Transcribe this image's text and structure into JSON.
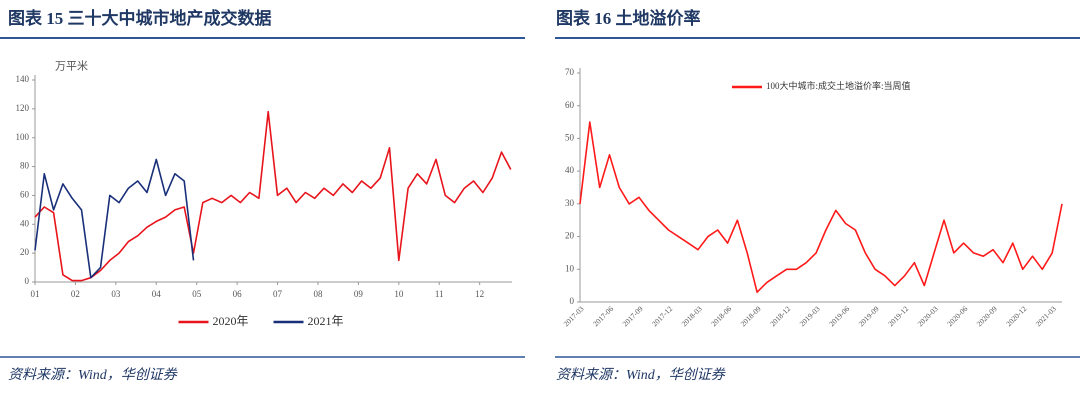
{
  "chart_data": [
    {
      "type": "line",
      "title": "图表 15   三十大中城市地产成交数据",
      "source": "资料来源：Wind，华创证券",
      "y_label": "万平米",
      "x": [
        1.0,
        1.23,
        1.46,
        1.69,
        1.92,
        2.15,
        2.38,
        2.62,
        2.85,
        3.08,
        3.31,
        3.54,
        3.77,
        4.0,
        4.23,
        4.46,
        4.69,
        4.92,
        5.15,
        5.38,
        5.62,
        5.85,
        6.08,
        6.31,
        6.54,
        6.77,
        7.0,
        7.23,
        7.46,
        7.69,
        7.92,
        8.15,
        8.38,
        8.62,
        8.85,
        9.08,
        9.31,
        9.54,
        9.77,
        10.0,
        10.23,
        10.46,
        10.69,
        10.92,
        11.15,
        11.38,
        11.62,
        11.85,
        12.08,
        12.31,
        12.54,
        12.77
      ],
      "xlim": [
        1,
        12.8
      ],
      "xticks": [
        {
          "value": 1,
          "label": "01"
        },
        {
          "value": 2,
          "label": "02"
        },
        {
          "value": 3,
          "label": "03"
        },
        {
          "value": 4,
          "label": "04"
        },
        {
          "value": 5,
          "label": "05"
        },
        {
          "value": 6,
          "label": "06"
        },
        {
          "value": 7,
          "label": "07"
        },
        {
          "value": 8,
          "label": "08"
        },
        {
          "value": 9,
          "label": "09"
        },
        {
          "value": 10,
          "label": "10"
        },
        {
          "value": 11,
          "label": "11"
        },
        {
          "value": 12,
          "label": "12"
        }
      ],
      "ylim": [
        0,
        140
      ],
      "yticks": [
        0,
        20,
        40,
        60,
        80,
        100,
        120,
        140
      ],
      "legend": "bottom",
      "series": [
        {
          "name": "2020年",
          "color": "#e8141b",
          "values": [
            45,
            52,
            48,
            5,
            1,
            1,
            3,
            8,
            15,
            20,
            28,
            32,
            38,
            42,
            45,
            50,
            52,
            20,
            55,
            58,
            55,
            60,
            55,
            62,
            58,
            118,
            60,
            65,
            55,
            62,
            58,
            65,
            60,
            68,
            62,
            70,
            65,
            72,
            93,
            15,
            65,
            75,
            68,
            85,
            60,
            55,
            65,
            70,
            62,
            72,
            90,
            78
          ]
        },
        {
          "name": "2021年",
          "color": "#1a2f7a",
          "values": [
            22,
            75,
            50,
            68,
            58,
            50,
            3,
            10,
            60,
            55,
            65,
            70,
            62,
            85,
            60,
            75,
            70,
            15,
            null,
            null,
            null,
            null,
            null,
            null,
            null,
            null,
            null,
            null,
            null,
            null,
            null,
            null,
            null,
            null,
            null,
            null,
            null,
            null,
            null,
            null,
            null,
            null,
            null,
            null,
            null,
            null,
            null,
            null,
            null,
            null,
            null,
            null
          ]
        }
      ]
    },
    {
      "type": "line",
      "title": "图表 16   土地溢价率",
      "source": "资料来源：Wind，华创证券",
      "categories": [
        "2017-03",
        null,
        null,
        "2017-06",
        null,
        null,
        "2017-09",
        null,
        null,
        "2017-12",
        null,
        null,
        "2018-03",
        null,
        null,
        "2018-06",
        null,
        null,
        "2018-09",
        null,
        null,
        "2018-12",
        null,
        null,
        "2019-03",
        null,
        null,
        "2019-06",
        null,
        null,
        "2019-09",
        null,
        null,
        "2019-12",
        null,
        null,
        "2020-03",
        null,
        null,
        "2020-06",
        null,
        null,
        "2020-09",
        null,
        null,
        "2020-12",
        null,
        null,
        "2021-03",
        null
      ],
      "ylim": [
        0,
        70
      ],
      "yticks": [
        0,
        10,
        20,
        30,
        40,
        50,
        60,
        70
      ],
      "legend": "top",
      "series": [
        {
          "name": "100大中城市:成交土地溢价率:当周值",
          "color": "#ff1a1a",
          "values": [
            30,
            55,
            35,
            45,
            35,
            30,
            32,
            28,
            25,
            22,
            20,
            18,
            16,
            20,
            22,
            18,
            25,
            15,
            3,
            6,
            8,
            10,
            10,
            12,
            15,
            22,
            28,
            24,
            22,
            15,
            10,
            8,
            5,
            8,
            12,
            5,
            15,
            25,
            15,
            18,
            15,
            14,
            16,
            12,
            18,
            10,
            14,
            10,
            15,
            30
          ]
        }
      ]
    }
  ]
}
